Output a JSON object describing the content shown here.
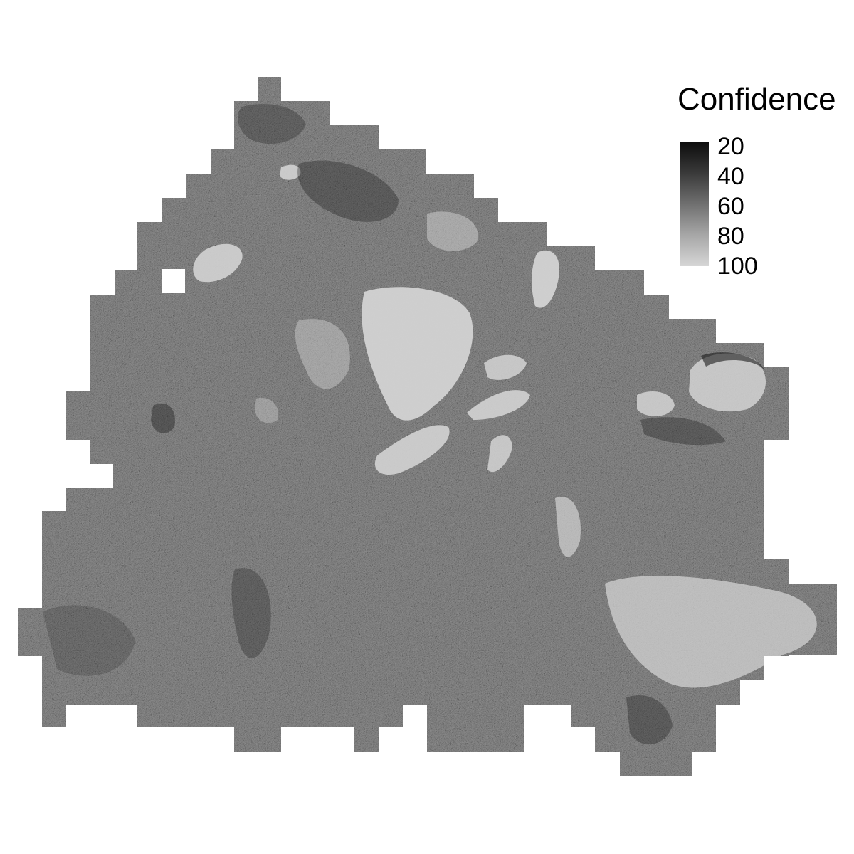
{
  "legend": {
    "title": "Confidence",
    "ticks": [
      "20",
      "40",
      "60",
      "80",
      "100"
    ],
    "scale": {
      "min": 20,
      "max": 100,
      "low_color": "#0d0d0d",
      "high_color": "#d6d6d6"
    }
  },
  "map": {
    "type": "raster",
    "variable": "Confidence",
    "background": "#ffffff",
    "colors": {
      "dark": "#1a1a1a",
      "mid": "#8c8c8c",
      "light": "#d3d3d3"
    }
  }
}
